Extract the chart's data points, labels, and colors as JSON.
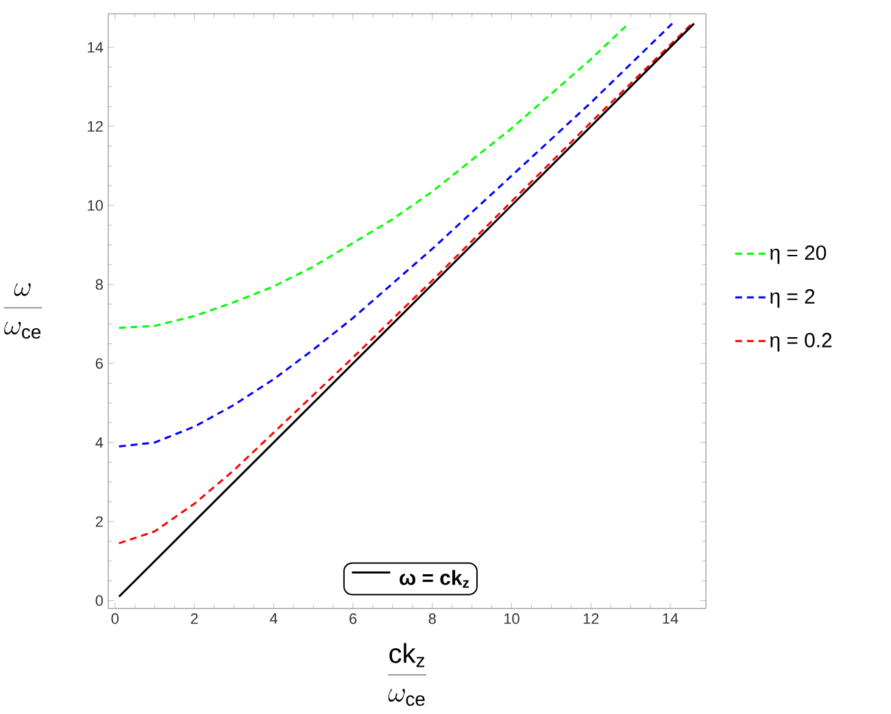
{
  "chart_data": {
    "type": "line",
    "xlabel": "\\frac{\\mathrm{ck_{z}}}{\\omega_{\\mathrm{ce}}}",
    "ylabel": "\\frac{\\omega}{\\omega_{\\mathrm{ce}}}",
    "xlim": [
      -0.17,
      14.9
    ],
    "ylim": [
      -0.2,
      14.85
    ],
    "xticks": [
      0,
      2,
      4,
      6,
      8,
      10,
      12,
      14
    ],
    "yticks": [
      0,
      2,
      4,
      6,
      8,
      10,
      12,
      14
    ],
    "legend": "right",
    "grid": false,
    "series": [
      {
        "name": "η = 20",
        "color": "#00ff00",
        "line_style": "dashed",
        "x": [
          0.1,
          1,
          2,
          3,
          4,
          5,
          6,
          7,
          8,
          10,
          12,
          12.95
        ],
        "values": [
          6.9,
          6.95,
          7.2,
          7.55,
          7.95,
          8.45,
          9.05,
          9.65,
          10.35,
          11.95,
          13.7,
          14.6
        ]
      },
      {
        "name": "η = 2",
        "color": "#0000ff",
        "line_style": "dashed",
        "x": [
          0.1,
          1,
          2,
          3,
          4,
          5,
          6,
          8,
          10,
          12,
          14.05
        ],
        "values": [
          3.9,
          4.0,
          4.4,
          4.95,
          5.6,
          6.35,
          7.15,
          8.9,
          10.75,
          12.6,
          14.6
        ]
      },
      {
        "name": "η = 0.2",
        "color": "#ff0000",
        "line_style": "dashed",
        "x": [
          0.1,
          1,
          2,
          3,
          4,
          5,
          6,
          8,
          10,
          12,
          14.6
        ],
        "values": [
          1.45,
          1.75,
          2.45,
          3.3,
          4.25,
          5.2,
          6.15,
          8.1,
          10.1,
          12.1,
          14.65
        ]
      },
      {
        "name": "ω = ck$_{z}$",
        "color": "#000000",
        "line_style": "solid",
        "x": [
          0.1,
          14.6
        ],
        "values": [
          0.1,
          14.6
        ]
      }
    ]
  }
}
